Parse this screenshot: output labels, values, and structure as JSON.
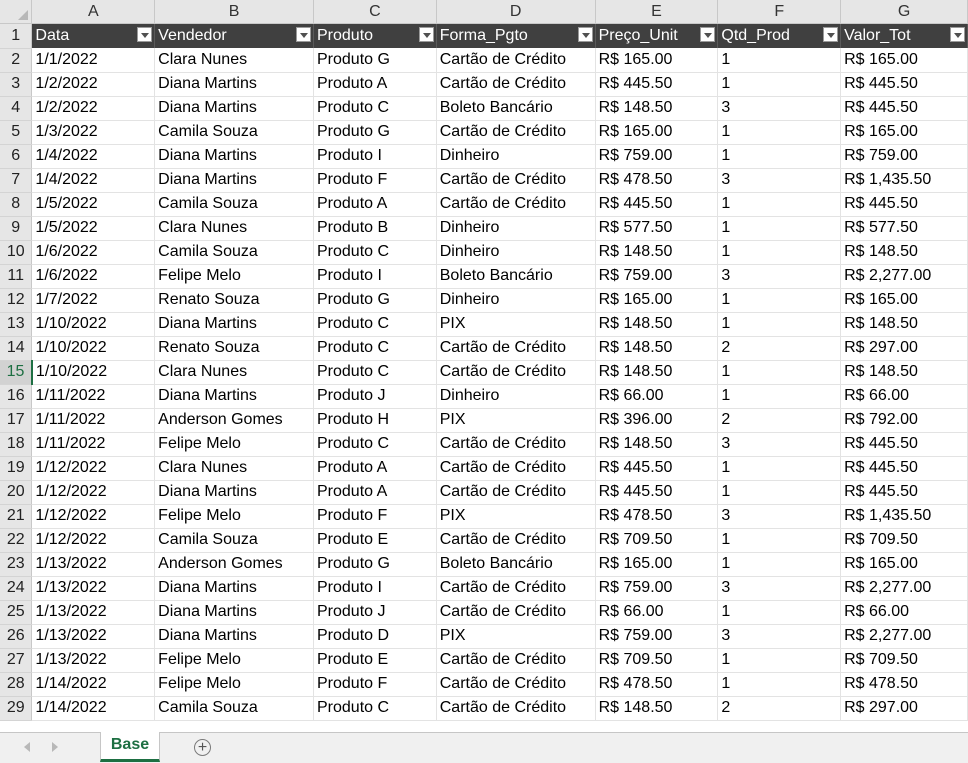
{
  "workbook": {
    "column_letters": [
      "A",
      "B",
      "C",
      "D",
      "E",
      "F",
      "G"
    ],
    "header_row_number": "1",
    "headers": [
      "Data",
      "Vendedor",
      "Produto",
      "Forma_Pgto",
      "Preço_Unit",
      "Qtd_Prod",
      "Valor_Tot"
    ],
    "selected_row": 15,
    "rows": [
      {
        "n": "2",
        "cells": [
          "1/1/2022",
          "Clara Nunes",
          "Produto G",
          "Cartão de Crédito",
          "R$ 165.00",
          "1",
          "R$ 165.00"
        ]
      },
      {
        "n": "3",
        "cells": [
          "1/2/2022",
          "Diana Martins",
          "Produto A",
          "Cartão de Crédito",
          "R$ 445.50",
          "1",
          "R$ 445.50"
        ]
      },
      {
        "n": "4",
        "cells": [
          "1/2/2022",
          "Diana Martins",
          "Produto C",
          "Boleto Bancário",
          "R$ 148.50",
          "3",
          "R$ 445.50"
        ]
      },
      {
        "n": "5",
        "cells": [
          "1/3/2022",
          "Camila Souza",
          "Produto G",
          "Cartão de Crédito",
          "R$ 165.00",
          "1",
          "R$ 165.00"
        ]
      },
      {
        "n": "6",
        "cells": [
          "1/4/2022",
          "Diana Martins",
          "Produto I",
          "Dinheiro",
          "R$ 759.00",
          "1",
          "R$ 759.00"
        ]
      },
      {
        "n": "7",
        "cells": [
          "1/4/2022",
          "Diana Martins",
          "Produto F",
          "Cartão de Crédito",
          "R$ 478.50",
          "3",
          "R$ 1,435.50"
        ]
      },
      {
        "n": "8",
        "cells": [
          "1/5/2022",
          "Camila Souza",
          "Produto A",
          "Cartão de Crédito",
          "R$ 445.50",
          "1",
          "R$ 445.50"
        ]
      },
      {
        "n": "9",
        "cells": [
          "1/5/2022",
          "Clara Nunes",
          "Produto B",
          "Dinheiro",
          "R$ 577.50",
          "1",
          "R$ 577.50"
        ]
      },
      {
        "n": "10",
        "cells": [
          "1/6/2022",
          "Camila Souza",
          "Produto C",
          "Dinheiro",
          "R$ 148.50",
          "1",
          "R$ 148.50"
        ]
      },
      {
        "n": "11",
        "cells": [
          "1/6/2022",
          "Felipe Melo",
          "Produto I",
          "Boleto Bancário",
          "R$ 759.00",
          "3",
          "R$ 2,277.00"
        ]
      },
      {
        "n": "12",
        "cells": [
          "1/7/2022",
          "Renato Souza",
          "Produto G",
          "Dinheiro",
          "R$ 165.00",
          "1",
          "R$ 165.00"
        ]
      },
      {
        "n": "13",
        "cells": [
          "1/10/2022",
          "Diana Martins",
          "Produto C",
          "PIX",
          "R$ 148.50",
          "1",
          "R$ 148.50"
        ]
      },
      {
        "n": "14",
        "cells": [
          "1/10/2022",
          "Renato Souza",
          "Produto C",
          "Cartão de Crédito",
          "R$ 148.50",
          "2",
          "R$ 297.00"
        ]
      },
      {
        "n": "15",
        "cells": [
          "1/10/2022",
          "Clara Nunes",
          "Produto C",
          "Cartão de Crédito",
          "R$ 148.50",
          "1",
          "R$ 148.50"
        ]
      },
      {
        "n": "16",
        "cells": [
          "1/11/2022",
          "Diana Martins",
          "Produto J",
          "Dinheiro",
          "R$ 66.00",
          "1",
          "R$ 66.00"
        ]
      },
      {
        "n": "17",
        "cells": [
          "1/11/2022",
          "Anderson Gomes",
          "Produto H",
          "PIX",
          "R$ 396.00",
          "2",
          "R$ 792.00"
        ]
      },
      {
        "n": "18",
        "cells": [
          "1/11/2022",
          "Felipe Melo",
          "Produto C",
          "Cartão de Crédito",
          "R$ 148.50",
          "3",
          "R$ 445.50"
        ]
      },
      {
        "n": "19",
        "cells": [
          "1/12/2022",
          "Clara Nunes",
          "Produto A",
          "Cartão de Crédito",
          "R$ 445.50",
          "1",
          "R$ 445.50"
        ]
      },
      {
        "n": "20",
        "cells": [
          "1/12/2022",
          "Diana Martins",
          "Produto A",
          "Cartão de Crédito",
          "R$ 445.50",
          "1",
          "R$ 445.50"
        ]
      },
      {
        "n": "21",
        "cells": [
          "1/12/2022",
          "Felipe Melo",
          "Produto F",
          "PIX",
          "R$ 478.50",
          "3",
          "R$ 1,435.50"
        ]
      },
      {
        "n": "22",
        "cells": [
          "1/12/2022",
          "Camila Souza",
          "Produto E",
          "Cartão de Crédito",
          "R$ 709.50",
          "1",
          "R$ 709.50"
        ]
      },
      {
        "n": "23",
        "cells": [
          "1/13/2022",
          "Anderson Gomes",
          "Produto G",
          "Boleto Bancário",
          "R$ 165.00",
          "1",
          "R$ 165.00"
        ]
      },
      {
        "n": "24",
        "cells": [
          "1/13/2022",
          "Diana Martins",
          "Produto I",
          "Cartão de Crédito",
          "R$ 759.00",
          "3",
          "R$ 2,277.00"
        ]
      },
      {
        "n": "25",
        "cells": [
          "1/13/2022",
          "Diana Martins",
          "Produto J",
          "Cartão de Crédito",
          "R$ 66.00",
          "1",
          "R$ 66.00"
        ]
      },
      {
        "n": "26",
        "cells": [
          "1/13/2022",
          "Diana Martins",
          "Produto D",
          "PIX",
          "R$ 759.00",
          "3",
          "R$ 2,277.00"
        ]
      },
      {
        "n": "27",
        "cells": [
          "1/13/2022",
          "Felipe Melo",
          "Produto E",
          "Cartão de Crédito",
          "R$ 709.50",
          "1",
          "R$ 709.50"
        ]
      },
      {
        "n": "28",
        "cells": [
          "1/14/2022",
          "Felipe Melo",
          "Produto F",
          "Cartão de Crédito",
          "R$ 478.50",
          "1",
          "R$ 478.50"
        ]
      },
      {
        "n": "29",
        "cells": [
          "1/14/2022",
          "Camila Souza",
          "Produto C",
          "Cartão de Crédito",
          "R$ 148.50",
          "2",
          "R$ 297.00"
        ]
      }
    ]
  },
  "tabs": {
    "sheets": [
      "Base"
    ],
    "active": "Base",
    "add_sheet_symbol": "+"
  },
  "colors": {
    "header_fill": "#404040",
    "header_text": "#ffffff",
    "excel_green": "#1d6f42",
    "grid_line": "#e3e3e3"
  }
}
